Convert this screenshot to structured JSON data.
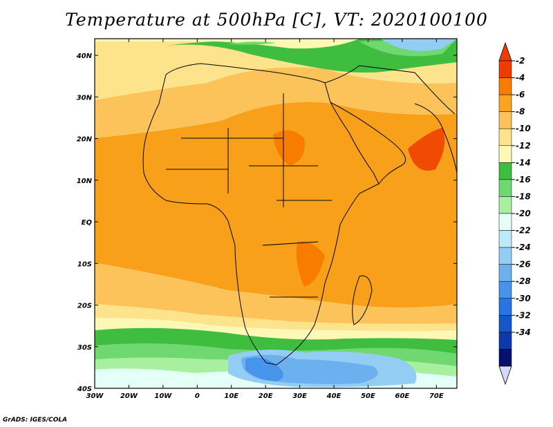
{
  "title": "Temperature at 500hPa [C], VT: 2020100100",
  "credit": "GrADS: IGES/COLA",
  "map": {
    "region": "Africa",
    "lon_range": [
      -30,
      76
    ],
    "lat_range": [
      -40,
      44
    ],
    "x_ticks": [
      {
        "lon": -30,
        "label": "30W"
      },
      {
        "lon": -20,
        "label": "20W"
      },
      {
        "lon": -10,
        "label": "10W"
      },
      {
        "lon": 0,
        "label": "0"
      },
      {
        "lon": 10,
        "label": "10E"
      },
      {
        "lon": 20,
        "label": "20E"
      },
      {
        "lon": 30,
        "label": "30E"
      },
      {
        "lon": 40,
        "label": "40E"
      },
      {
        "lon": 50,
        "label": "50E"
      },
      {
        "lon": 60,
        "label": "60E"
      },
      {
        "lon": 70,
        "label": "70E"
      }
    ],
    "y_ticks": [
      {
        "lat": 40,
        "label": "40N"
      },
      {
        "lat": 30,
        "label": "30N"
      },
      {
        "lat": 20,
        "label": "20N"
      },
      {
        "lat": 10,
        "label": "10N"
      },
      {
        "lat": 0,
        "label": "EQ"
      },
      {
        "lat": -10,
        "label": "10S"
      },
      {
        "lat": -20,
        "label": "20S"
      },
      {
        "lat": -30,
        "label": "30S"
      },
      {
        "lat": -40,
        "label": "40S"
      }
    ]
  },
  "colorbar": {
    "labels": [
      "-2",
      "-4",
      "-6",
      "-8",
      "-10",
      "-12",
      "-14",
      "-16",
      "-18",
      "-20",
      "-22",
      "-24",
      "-26",
      "-28",
      "-30",
      "-32",
      "-34"
    ],
    "colors": [
      "#f03c00",
      "#f87c00",
      "#fba424",
      "#fcc35a",
      "#fde38c",
      "#fdf8b6",
      "#3ebd3e",
      "#70d870",
      "#a8f0a0",
      "#e4fff8",
      "#bceafb",
      "#94cdf4",
      "#6cb0ef",
      "#4894eb",
      "#2874e2",
      "#1656c9",
      "#0c3aac",
      "#050f6c"
    ],
    "top_arrow_color": "#f03c00",
    "bottom_arrow_color": "#d8d8ff"
  }
}
